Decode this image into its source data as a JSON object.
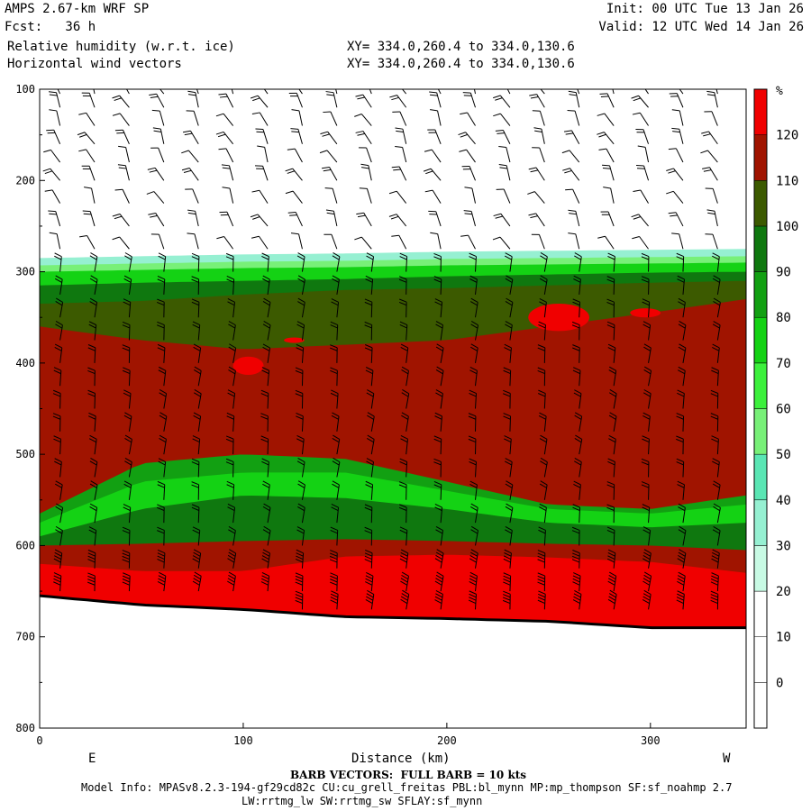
{
  "header": {
    "title": "AMPS 2.67-km WRF SP",
    "fcst": "Fcst:   36 h",
    "field1": "Relative humidity (w.r.t. ice)",
    "field2": "Horizontal wind vectors",
    "init": "Init: 00 UTC Tue 13 Jan 26",
    "valid": "Valid: 12 UTC Wed 14 Jan 26",
    "xy1": "XY= 334.0,260.4 to 334.0,130.6",
    "xy2": "XY= 334.0,260.4 to 334.0,130.6"
  },
  "footer": {
    "barb_note": "BARB VECTORS:  FULL BARB = 10 kts",
    "model_info": "Model Info: MPASv8.2.3-194-gf29cd82c CU:cu_grell_freitas PBL:bl_mynn MP:mp_thompson SF:sf_noahmp 2.7",
    "model_info2": "LW:rrtmg_lw SW:rrtmg_sw SFLAY:sf_mynn"
  },
  "colors": {
    "bands": [
      "#ffffff",
      "#ffffff",
      "#ffffff",
      "#c8fae4",
      "#96f0d2",
      "#5ae6b4",
      "#78f078",
      "#3cf03c",
      "#14d214",
      "#12a012",
      "#0f780f",
      "#3c5a00",
      "#a01400",
      "#f00000"
    ],
    "ground": "#000000"
  },
  "chart_data": {
    "type": "heatmap",
    "title": "Relative humidity (w.r.t. ice)",
    "xlabel": "Distance (km)",
    "ylabel": "",
    "xlim": [
      0,
      347
    ],
    "ylim": [
      800,
      100
    ],
    "x_ticks": [
      0,
      100,
      200,
      300
    ],
    "x_tick_labels": [
      "0",
      "100",
      "200",
      "300"
    ],
    "y_ticks": [
      100,
      200,
      300,
      400,
      500,
      600,
      700,
      800
    ],
    "y_tick_labels": [
      "100",
      "200",
      "300",
      "400",
      "500",
      "600",
      "700",
      "800"
    ],
    "left_end_label": "E",
    "right_end_label": "W",
    "colorbar": {
      "unit": "%",
      "levels": [
        0,
        10,
        20,
        30,
        40,
        50,
        60,
        70,
        80,
        90,
        100,
        110,
        120
      ],
      "labels": [
        "0",
        "10",
        "20",
        "30",
        "40",
        "50",
        "60",
        "70",
        "80",
        "90",
        "100",
        "110",
        "120"
      ]
    },
    "ground_pressure": {
      "x": [
        0,
        50,
        100,
        150,
        200,
        250,
        300,
        347
      ],
      "p": [
        655,
        665,
        670,
        678,
        680,
        683,
        690,
        690
      ]
    },
    "rh_layers": [
      {
        "top": [
          285,
          283,
          281,
          280,
          278,
          277,
          276,
          275
        ],
        "value": 30
      },
      {
        "top": [
          293,
          291,
          289,
          288,
          286,
          285,
          284,
          283
        ],
        "value": 55
      },
      {
        "top": [
          300,
          298,
          296,
          295,
          293,
          292,
          291,
          290
        ],
        "value": 75
      },
      {
        "top": [
          315,
          312,
          310,
          308,
          305,
          303,
          301,
          300
        ],
        "value": 90
      },
      {
        "top": [
          335,
          332,
          325,
          320,
          318,
          315,
          312,
          310
        ],
        "value": 100
      },
      {
        "top": [
          360,
          375,
          385,
          380,
          375,
          360,
          345,
          330
        ],
        "value": 110
      },
      {
        "top": [
          565,
          510,
          500,
          505,
          530,
          555,
          560,
          545
        ],
        "value": 80
      },
      {
        "top": [
          575,
          530,
          520,
          520,
          540,
          560,
          565,
          555
        ],
        "value": 70
      },
      {
        "top": [
          590,
          560,
          545,
          548,
          560,
          575,
          580,
          575
        ],
        "value": 90
      },
      {
        "top": [
          600,
          598,
          595,
          593,
          595,
          598,
          600,
          605
        ],
        "value": 110
      },
      {
        "top": [
          620,
          628,
          628,
          612,
          610,
          613,
          618,
          630
        ],
        "value": 120
      }
    ],
    "rh_patches": [
      {
        "x": [
          240,
          270
        ],
        "p": [
          335,
          365
        ],
        "value": 120
      },
      {
        "x": [
          290,
          305
        ],
        "p": [
          340,
          350
        ],
        "value": 120
      },
      {
        "x": [
          95,
          110
        ],
        "p": [
          393,
          413
        ],
        "value": 120
      },
      {
        "x": [
          120,
          130
        ],
        "p": [
          372,
          378
        ],
        "value": 120
      }
    ],
    "wind_barb_columns_x": [
      10,
      27,
      44,
      61,
      78,
      95,
      112,
      129,
      146,
      163,
      180,
      197,
      214,
      231,
      248,
      265,
      282,
      299,
      316,
      333
    ],
    "wind_barb_levels_p": [
      105,
      120,
      140,
      160,
      180,
      200,
      225,
      250,
      275,
      300,
      325,
      350,
      375,
      400,
      425,
      450,
      475,
      500,
      525,
      550,
      575,
      600,
      625,
      650,
      670
    ],
    "calm_column_x": 173
  }
}
